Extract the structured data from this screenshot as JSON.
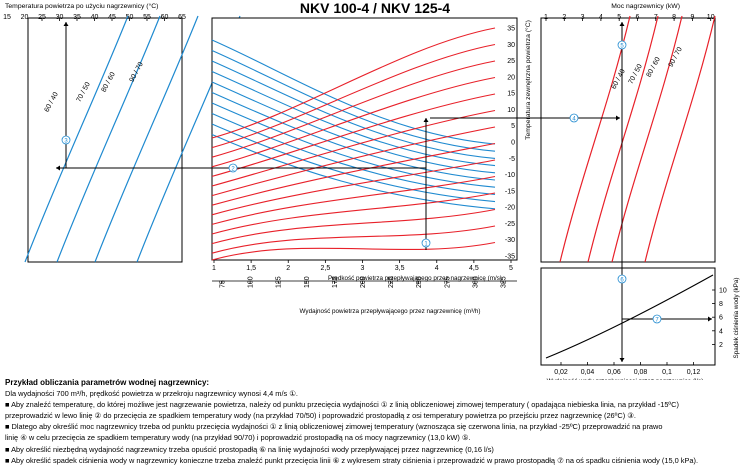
{
  "title": "NKV 100-4 / NKV 125-4",
  "chart_data": {
    "type": "line",
    "colors": {
      "cold_curves": "#1f8ad0",
      "hot_curves": "#e8212a",
      "axis": "#000000"
    },
    "panels": {
      "left": {
        "axis_title": "Temperatura powietrza po użyciu nagrzewnicy (°C)",
        "ticks": [
          "15",
          "20",
          "25",
          "30",
          "35",
          "40",
          "45",
          "50",
          "55",
          "60",
          "65"
        ],
        "series": [
          "60 / 40",
          "70 / 50",
          "80 / 60",
          "90 / 70"
        ]
      },
      "center": {
        "left_ticks": [
          "-35",
          "-30",
          "-25",
          "-20",
          "-15",
          "-10",
          "-5",
          "0",
          "5",
          "10",
          "15",
          "20",
          "25",
          "30",
          "35"
        ],
        "right_ticks_top": [
          "35",
          "30",
          "25",
          "20",
          "15",
          "10",
          "5",
          "0",
          "-5",
          "-10",
          "-15",
          "-20",
          "-25",
          "-30",
          "-35"
        ],
        "right_axis_title": "Temperatura zewnętrzna powietrza",
        "x1_ticks": [
          "1",
          "1,5",
          "2",
          "2,5",
          "3",
          "3,5",
          "4",
          "4,5",
          "5"
        ],
        "x1_label": "Prędkość powietrza przepływającego przez nagrzewnicę (m/s)",
        "x2_ticks": [
          "75",
          "100",
          "125",
          "150",
          "175",
          "200",
          "225",
          "250",
          "275",
          "300",
          "325"
        ],
        "x2_label": "Wydajność powietrza przepływającego przez nagrzewnicę (m³/h)"
      },
      "right_top": {
        "axis_title": "Moc nagrzewnicy (kW)",
        "ticks": [
          "1",
          "2",
          "3",
          "4",
          "5",
          "6",
          "7",
          "8",
          "9",
          "10"
        ],
        "series": [
          "60 / 40",
          "70 / 50",
          "80 / 60",
          "90 / 70"
        ]
      },
      "right_bottom": {
        "x_ticks": [
          "0,02",
          "0,04",
          "0,06",
          "0,08",
          "0,1",
          "0,12"
        ],
        "x_label": "Wydajność wody przepływającej przez nagrzewnicę (l/s)",
        "y_ticks": [
          "2",
          "4",
          "6",
          "8",
          "10"
        ],
        "y_label": "Spadek ciśnienia wody (kPa)"
      }
    },
    "example_path": {
      "markers": [
        "1",
        "2",
        "3",
        "4",
        "5",
        "6",
        "7"
      ],
      "air_velocity_m_s": 4.4,
      "air_flow_m3_h": 700,
      "outside_temp_c": -15,
      "water_regime": "70/50",
      "result_air_temp_c": 26,
      "power_kw": 13.0,
      "water_flow_l_s": 0.16,
      "pressure_drop_kpa": 15.0
    }
  },
  "notes": {
    "heading": "Przykład obliczania parametrów wodnej nagrzewnicy:",
    "lines": [
      "Dla wydajności 700 m³/h, prędkość powietrza w przekroju nagrzewnicy wynosi 4,4 m/s ①.",
      "■ Aby znaleźć temperaturę, do której możliwe jest nagrzewanie powietrza, należy od punktu przecięcia wydajności ① z linią obliczeniowej zimowej temperatury ( opadająca niebieska linia, na przykład -15ºC)",
      "przeprowadzić w lewo linię ② do przecięcia ze spadkiem temperatury wody (na przykład 70/50) i poprowadzić prostopadłą z osi temperatury powietrza po przejściu przez nagrzewnicę (26ºC) ③.",
      "■ Dlatego aby określić moc nagrzewnicy trzeba od punktu przecięcia wydajności ① z linią obliczeniowej zimowej temperatury (wznosząca się czerwona linia, na przykład -25ºC) przeprowadzić na prawo",
      "linię ④ w celu przecięcia ze spadkiem temperatury wody (na przykład 90/70) i poprowadzić prostopadłą na oś mocy nagrzewnicy (13,0 kW) ⑤.",
      "■ Aby określić niezbędną wydajność nagrzewnicy trzeba opuścić prostopadłą ⑥ na linię wydajności wody przepływającej przez nagrzewnicę (0,16 l/s)",
      "■ Aby określić spadek ciśnienia wody w nagrzewnicy konieczne trzeba znaleźć punkt przecięcia linii ⑥ z wykresem straty ciśnienia i przeprowadzić w prawo prostopadłą ⑦ na oś spadku ciśnienia wody (15,0 kPa)."
    ]
  }
}
